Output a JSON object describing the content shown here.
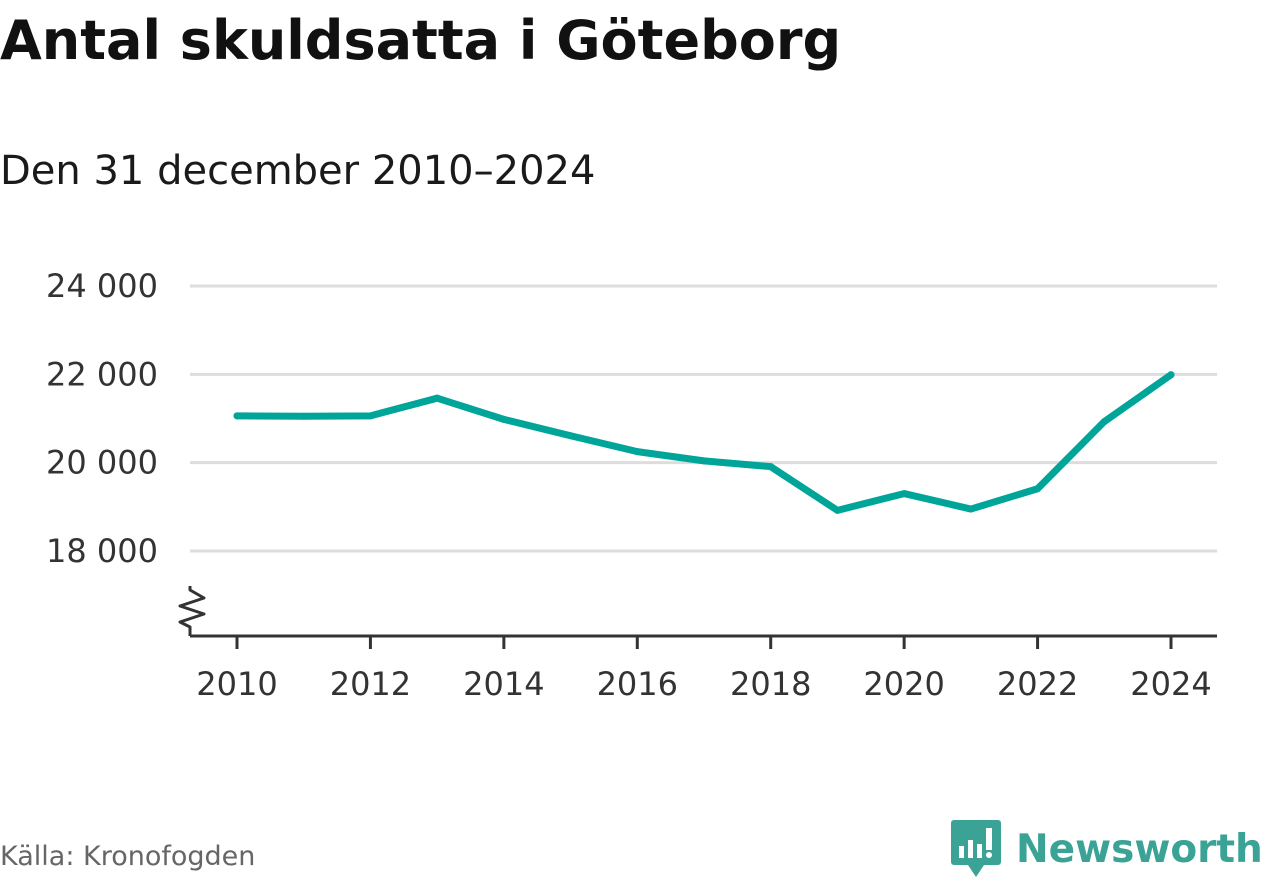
{
  "chart_data": {
    "type": "line",
    "title": "Antal skuldsatta i Göteborg",
    "subtitle": "Den 31 december 2010–2024",
    "xlabel": "",
    "ylabel": "",
    "x": [
      2010,
      2011,
      2012,
      2013,
      2014,
      2015,
      2016,
      2017,
      2018,
      2019,
      2020,
      2021,
      2022,
      2023,
      2024
    ],
    "series": [
      {
        "name": "Antal skuldsatta",
        "values": [
          21060,
          21050,
          21060,
          21460,
          20980,
          20610,
          20250,
          20040,
          19910,
          18920,
          19300,
          18950,
          19410,
          20930,
          21990
        ]
      }
    ],
    "ylim": [
      16000,
      24000
    ],
    "yticks": [
      18000,
      20000,
      22000,
      24000
    ],
    "ytick_labels": [
      "18 000",
      "20 000",
      "22 000",
      "24 000"
    ],
    "xticks": [
      2010,
      2012,
      2014,
      2016,
      2018,
      2020,
      2022,
      2024
    ],
    "xtick_labels": [
      "2010",
      "2012",
      "2014",
      "2016",
      "2018",
      "2020",
      "2022",
      "2024"
    ],
    "grid": true,
    "axis_break": true,
    "line_color": "#00a59a",
    "grid_color": "#dddddd"
  },
  "footer": {
    "source": "Källa: Kronofogden",
    "brand": "Newsworthy",
    "brand_icon": "bar-chart-speech-bubble-icon",
    "brand_color": "#3aa395"
  }
}
